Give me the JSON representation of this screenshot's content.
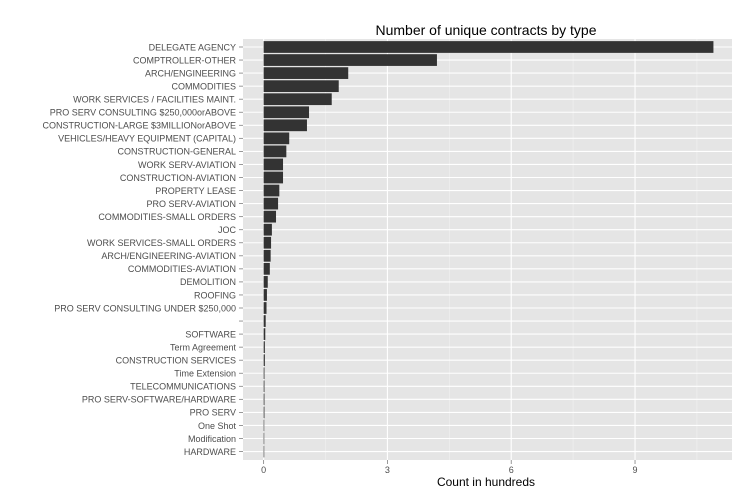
{
  "chart_data": {
    "type": "bar",
    "orientation": "horizontal",
    "title": "Number of unique contracts by type",
    "xlabel": "Count in hundreds",
    "ylabel": "",
    "xlim": [
      -0.5,
      11.35
    ],
    "xticks": [
      0,
      3,
      6,
      9
    ],
    "grid": true,
    "legend": "none",
    "colors": {
      "bar": "#333333",
      "panel": "#e5e5e5",
      "grid_major": "#ffffff",
      "grid_minor": "#f2f2f2"
    },
    "categories": [
      "DELEGATE AGENCY",
      "COMPTROLLER-OTHER",
      "ARCH/ENGINEERING",
      "COMMODITIES",
      "WORK SERVICES / FACILITIES MAINT.",
      "PRO SERV CONSULTING $250,000orABOVE",
      "CONSTRUCTION-LARGE $3MILLIONorABOVE",
      "VEHICLES/HEAVY EQUIPMENT (CAPITAL)",
      "CONSTRUCTION-GENERAL",
      "WORK SERV-AVIATION",
      "CONSTRUCTION-AVIATION",
      "PROPERTY LEASE",
      "PRO SERV-AVIATION",
      "COMMODITIES-SMALL ORDERS",
      "JOC",
      "WORK SERVICES-SMALL ORDERS",
      "ARCH/ENGINEERING-AVIATION",
      "COMMODITIES-AVIATION",
      "DEMOLITION",
      "ROOFING",
      "PRO SERV CONSULTING UNDER $250,000",
      "",
      "SOFTWARE",
      "Term Agreement",
      "CONSTRUCTION SERVICES",
      "Time Extension",
      "TELECOMMUNICATIONS",
      "PRO SERV-SOFTWARE/HARDWARE",
      "PRO SERV",
      "One Shot",
      "Modification",
      "HARDWARE"
    ],
    "values": [
      10.9,
      4.2,
      2.05,
      1.82,
      1.65,
      1.1,
      1.05,
      0.62,
      0.55,
      0.47,
      0.47,
      0.38,
      0.35,
      0.3,
      0.2,
      0.18,
      0.17,
      0.15,
      0.1,
      0.08,
      0.07,
      0.05,
      0.04,
      0.03,
      0.03,
      0.02,
      0.02,
      0.02,
      0.02,
      0.01,
      0.01,
      0.01
    ]
  }
}
